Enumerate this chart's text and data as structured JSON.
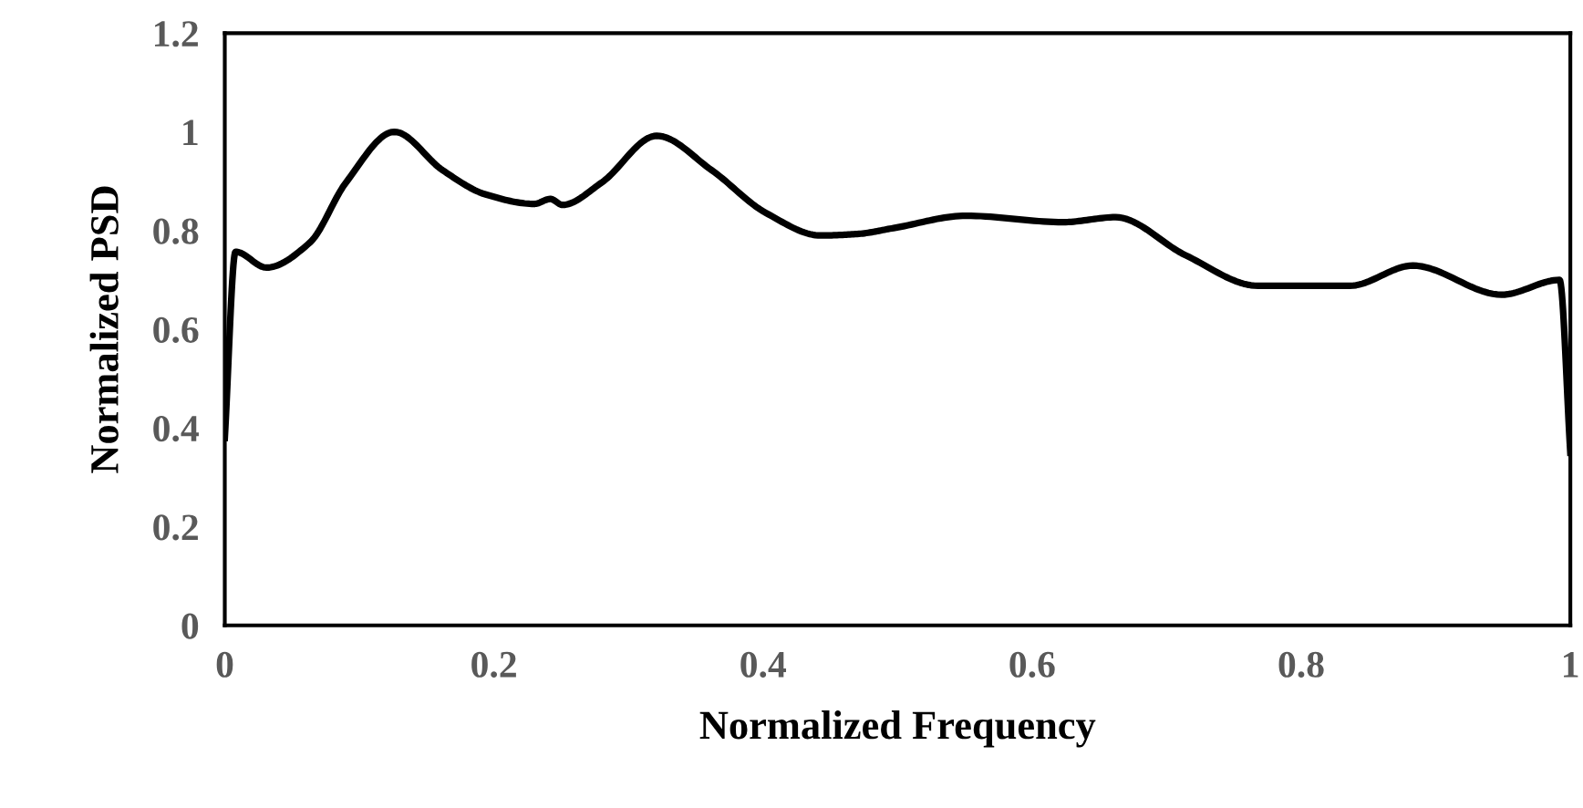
{
  "chart_data": {
    "type": "line",
    "xlabel": "Normalized Frequency",
    "ylabel": "Normalized PSD",
    "xlim": [
      0,
      1
    ],
    "xticks": [
      0,
      0.2,
      0.4,
      0.6,
      0.8,
      1
    ],
    "ylim": [
      0,
      1.2
    ],
    "yticks": [
      0,
      0.2,
      0.4,
      0.6,
      0.8,
      1,
      1.2
    ],
    "grid": false,
    "marker": "none",
    "line_style": "solid",
    "series": [
      {
        "color": "#000000",
        "x": [
          0,
          0.008,
          0.031,
          0.063,
          0.09,
          0.126,
          0.162,
          0.194,
          0.23,
          0.242,
          0.251,
          0.28,
          0.321,
          0.362,
          0.402,
          0.443,
          0.47,
          0.497,
          0.551,
          0.623,
          0.662,
          0.714,
          0.768,
          0.836,
          0.883,
          0.949,
          0.992,
          1.0
        ],
        "values": [
          0.38,
          0.757,
          0.725,
          0.775,
          0.897,
          1.0,
          0.922,
          0.873,
          0.854,
          0.864,
          0.852,
          0.897,
          0.992,
          0.922,
          0.836,
          0.79,
          0.793,
          0.805,
          0.83,
          0.817,
          0.827,
          0.75,
          0.688,
          0.688,
          0.729,
          0.67,
          0.7,
          0.35
        ]
      }
    ]
  }
}
